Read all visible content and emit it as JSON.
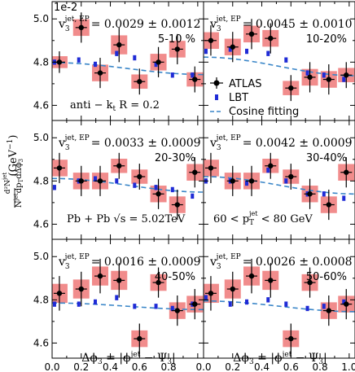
{
  "figure": {
    "offset_text": "1e-2",
    "xlabel_main": "Δϕ",
    "xlabel_sub": "3",
    "xlabel_rest": " = |ϕ",
    "xlabel_sup": "jet",
    "xlabel_end": " − Ψ",
    "xlabel_end_sub": "3",
    "xlabel_close": "|",
    "ylabel": "1/N^jet d²N^jet/dp_T dΔϕ_3 (GeV⁻¹)",
    "x_ticks": [
      "0.0",
      "0.2",
      "0.4",
      "0.6",
      "0.8",
      "1.0"
    ],
    "y_ticks": [
      "4.6",
      "4.8",
      "5.0"
    ],
    "legend": {
      "atlas": "ATLAS",
      "lbt": "LBT",
      "fit": "Cosine fitting"
    },
    "annotations": {
      "jet_algo": "anti − k",
      "jet_algo_sub": "t",
      "jet_algo_rest": " R = 0.2",
      "system": "Pb + Pb √s = 5.02TeV",
      "pt_range_left": "60 < p",
      "pt_range_sub": "T",
      "pt_range_sup": "jet",
      "pt_range_right": " < 80 GeV"
    },
    "colors": {
      "atlas": "#000000",
      "lbt": "#1f2bd6",
      "fit": "#3a86c8",
      "syst_box": "#f08080"
    }
  },
  "chart_data": [
    {
      "type": "scatter",
      "panel": "5-10 %",
      "v3_label": "v",
      "v3_value": "= 0.0029 ± 0.0012",
      "centrality": "5-10 %",
      "x": [
        0.05,
        0.2,
        0.33,
        0.46,
        0.6,
        0.73,
        0.86,
        0.98
      ],
      "atlas": [
        4.8,
        4.96,
        4.75,
        4.88,
        4.71,
        4.8,
        4.86,
        4.72
      ],
      "atlas_err": [
        0.05,
        0.07,
        0.07,
        0.08,
        0.06,
        0.07,
        0.07,
        0.06
      ],
      "lbt": [
        4.8,
        4.81,
        4.79,
        4.84,
        4.82,
        4.79,
        4.74,
        4.74
      ],
      "lbt_err": [
        0.012,
        0.012,
        0.012,
        0.012,
        0.012,
        0.012,
        0.012,
        0.012
      ],
      "fit_mean": 4.77,
      "fit_v3": 0.0029,
      "ylim": [
        4.53,
        5.08
      ],
      "xlim": [
        0.0,
        1.04
      ]
    },
    {
      "type": "scatter",
      "panel": "10-20%",
      "v3_label": "v",
      "v3_value": "= 0.0045 ± 0.0010",
      "centrality": "10-20%",
      "x": [
        0.05,
        0.2,
        0.33,
        0.46,
        0.6,
        0.73,
        0.86,
        0.98
      ],
      "atlas": [
        4.9,
        4.87,
        4.93,
        4.91,
        4.68,
        4.73,
        4.72,
        4.74
      ],
      "atlas_err": [
        0.07,
        0.07,
        0.07,
        0.07,
        0.06,
        0.07,
        0.07,
        0.06
      ],
      "lbt": [
        4.85,
        4.86,
        4.85,
        4.84,
        4.81,
        4.75,
        4.74,
        4.72
      ],
      "lbt_err": [
        0.012,
        0.012,
        0.012,
        0.012,
        0.012,
        0.012,
        0.012,
        0.012
      ],
      "fit_mean": 4.78,
      "fit_v3": 0.0045,
      "ylim": [
        4.53,
        5.08
      ],
      "xlim": [
        0.0,
        1.04
      ]
    },
    {
      "type": "scatter",
      "panel": "20-30%",
      "v3_label": "v",
      "v3_value": "= 0.0033 ± 0.0009",
      "centrality": "20-30%",
      "x": [
        0.05,
        0.2,
        0.33,
        0.46,
        0.6,
        0.73,
        0.86,
        0.98
      ],
      "atlas": [
        4.86,
        4.8,
        4.8,
        4.87,
        4.82,
        4.74,
        4.69,
        4.84
      ],
      "atlas_err": [
        0.07,
        0.07,
        0.07,
        0.06,
        0.06,
        0.07,
        0.07,
        0.07
      ],
      "lbt": [
        4.77,
        4.8,
        4.81,
        4.8,
        4.78,
        4.77,
        4.76,
        4.73
      ],
      "lbt_err": [
        0.012,
        0.012,
        0.012,
        0.012,
        0.012,
        0.012,
        0.012,
        0.012
      ],
      "fit_mean": 4.78,
      "fit_v3": 0.0033,
      "ylim": [
        4.53,
        5.08
      ],
      "xlim": [
        0.0,
        1.04
      ]
    },
    {
      "type": "scatter",
      "panel": "30-40%",
      "v3_label": "v",
      "v3_value": "= 0.0042 ± 0.0009",
      "centrality": "30-40%",
      "x": [
        0.05,
        0.2,
        0.33,
        0.46,
        0.6,
        0.73,
        0.86,
        0.98
      ],
      "atlas": [
        4.86,
        4.8,
        4.8,
        4.87,
        4.82,
        4.74,
        4.69,
        4.84
      ],
      "atlas_err": [
        0.07,
        0.07,
        0.07,
        0.06,
        0.06,
        0.07,
        0.07,
        0.07
      ],
      "lbt": [
        4.8,
        4.8,
        4.79,
        4.85,
        4.8,
        4.74,
        4.74,
        4.72
      ],
      "lbt_err": [
        0.012,
        0.012,
        0.012,
        0.012,
        0.012,
        0.012,
        0.012,
        0.012
      ],
      "fit_mean": 4.78,
      "fit_v3": 0.0042,
      "ylim": [
        4.53,
        5.08
      ],
      "xlim": [
        0.0,
        1.04
      ]
    },
    {
      "type": "scatter",
      "panel": "40-50%",
      "v3_label": "v",
      "v3_value": "= 0.0016 ± 0.0009",
      "centrality": "40-50%",
      "x": [
        0.05,
        0.2,
        0.33,
        0.46,
        0.6,
        0.73,
        0.86,
        0.98
      ],
      "atlas": [
        4.83,
        4.85,
        4.91,
        4.89,
        4.62,
        4.88,
        4.75,
        4.78
      ],
      "atlas_err": [
        0.08,
        0.08,
        0.08,
        0.08,
        0.07,
        0.07,
        0.07,
        0.07
      ],
      "lbt": [
        4.78,
        4.78,
        4.79,
        4.81,
        4.77,
        4.77,
        4.76,
        4.78
      ],
      "lbt_err": [
        0.012,
        0.012,
        0.012,
        0.012,
        0.012,
        0.012,
        0.012,
        0.012
      ],
      "fit_mean": 4.77,
      "fit_v3": 0.0016,
      "ylim": [
        4.53,
        5.08
      ],
      "xlim": [
        0.0,
        1.04
      ]
    },
    {
      "type": "scatter",
      "panel": "50-60%",
      "v3_label": "v",
      "v3_value": "= 0.0026 ± 0.0008",
      "centrality": "50-60%",
      "x": [
        0.05,
        0.2,
        0.33,
        0.46,
        0.6,
        0.73,
        0.86,
        0.98
      ],
      "atlas": [
        4.83,
        4.85,
        4.91,
        4.89,
        4.62,
        4.88,
        4.75,
        4.78
      ],
      "atlas_err": [
        0.08,
        0.08,
        0.08,
        0.08,
        0.07,
        0.07,
        0.07,
        0.07
      ],
      "lbt": [
        4.81,
        4.78,
        4.79,
        4.8,
        4.78,
        4.76,
        4.77,
        4.79
      ],
      "lbt_err": [
        0.012,
        0.012,
        0.012,
        0.012,
        0.012,
        0.012,
        0.012,
        0.012
      ],
      "fit_mean": 4.77,
      "fit_v3": 0.0026,
      "ylim": [
        4.53,
        5.08
      ],
      "xlim": [
        0.0,
        1.04
      ]
    }
  ]
}
